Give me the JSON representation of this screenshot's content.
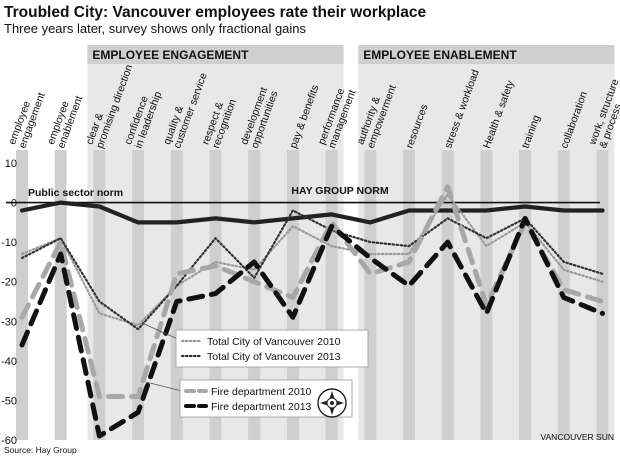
{
  "title": "Troubled City: Vancouver employees rate their workplace",
  "subtitle": "Three years later, survey shows only fractional gains",
  "source": "Source: Hay Group",
  "credit": "VANCOUVER SUN",
  "sections": [
    {
      "label": "EMPLOYEE ENGAGEMENT",
      "from": 2,
      "to": 8
    },
    {
      "label": "EMPLOYEE ENABLEMENT",
      "from": 9,
      "to": 15
    }
  ],
  "chart_data": {
    "type": "line",
    "categories": [
      [
        "employee",
        "engagement"
      ],
      [
        "employee",
        "enablement"
      ],
      [
        "clear &",
        "promising direction"
      ],
      [
        "confidence",
        "in leadership"
      ],
      [
        "quality &",
        "customer service"
      ],
      [
        "respect &",
        "recognition"
      ],
      [
        "development",
        "opportunities"
      ],
      [
        "pay & benefits"
      ],
      [
        "performance",
        "management"
      ],
      [
        "authority &",
        "empowerment"
      ],
      [
        "resources"
      ],
      [
        "stress & workload"
      ],
      [
        "Health & safety"
      ],
      [
        "training"
      ],
      [
        "collaboration"
      ],
      [
        "work, structure",
        "& process"
      ]
    ],
    "ylim": [
      -60,
      10
    ],
    "yticks": [
      10,
      0,
      -10,
      -20,
      -30,
      -40,
      -50,
      -60
    ],
    "series": [
      {
        "name": "Public sector norm",
        "style": "public",
        "values": [
          -2,
          0,
          -1,
          -5,
          -5,
          -4,
          -5,
          -4,
          -3,
          -5,
          -2,
          -2,
          -2,
          -1,
          -2,
          -2
        ]
      },
      {
        "name": "HAY GROUP NORM",
        "style": "hay",
        "values": [
          0,
          0,
          0,
          0,
          0,
          0,
          0,
          0,
          0,
          0,
          0,
          0,
          0,
          0,
          0,
          0
        ]
      },
      {
        "name": "Total City of Vancouver 2010",
        "style": "dotted-light",
        "values": [
          -13,
          -9,
          -28,
          -31,
          -21,
          -15,
          -17,
          -6,
          -11,
          -13,
          -13,
          2,
          -11,
          -5,
          -17,
          -20
        ]
      },
      {
        "name": "Total City of Vancouver 2013",
        "style": "dotted-dark",
        "values": [
          -14,
          -9,
          -25,
          -32,
          -21,
          -9,
          -19,
          -2,
          -7,
          -10,
          -11,
          -4,
          -9,
          -4,
          -15,
          -18
        ]
      },
      {
        "name": "Fire department 2010",
        "style": "dashed-light",
        "values": [
          -29,
          -10,
          -49,
          -49,
          -18,
          -16,
          -20,
          -24,
          -5,
          -18,
          -15,
          4,
          -26,
          -5,
          -22,
          -25
        ]
      },
      {
        "name": "Fire department 2013",
        "style": "dashed-dark",
        "values": [
          -36,
          -13,
          -59,
          -53,
          -25,
          -23,
          -15,
          -29,
          -6,
          -14,
          -21,
          -10,
          -28,
          -4,
          -24,
          -28
        ]
      }
    ],
    "legend_groups": [
      [
        2,
        3
      ],
      [
        4,
        5
      ]
    ],
    "annotations": [
      {
        "text": "Public sector norm",
        "series": 0
      },
      {
        "text": "HAY GROUP NORM",
        "series": 1
      }
    ],
    "grid": false,
    "xlabel": "",
    "ylabel": ""
  }
}
